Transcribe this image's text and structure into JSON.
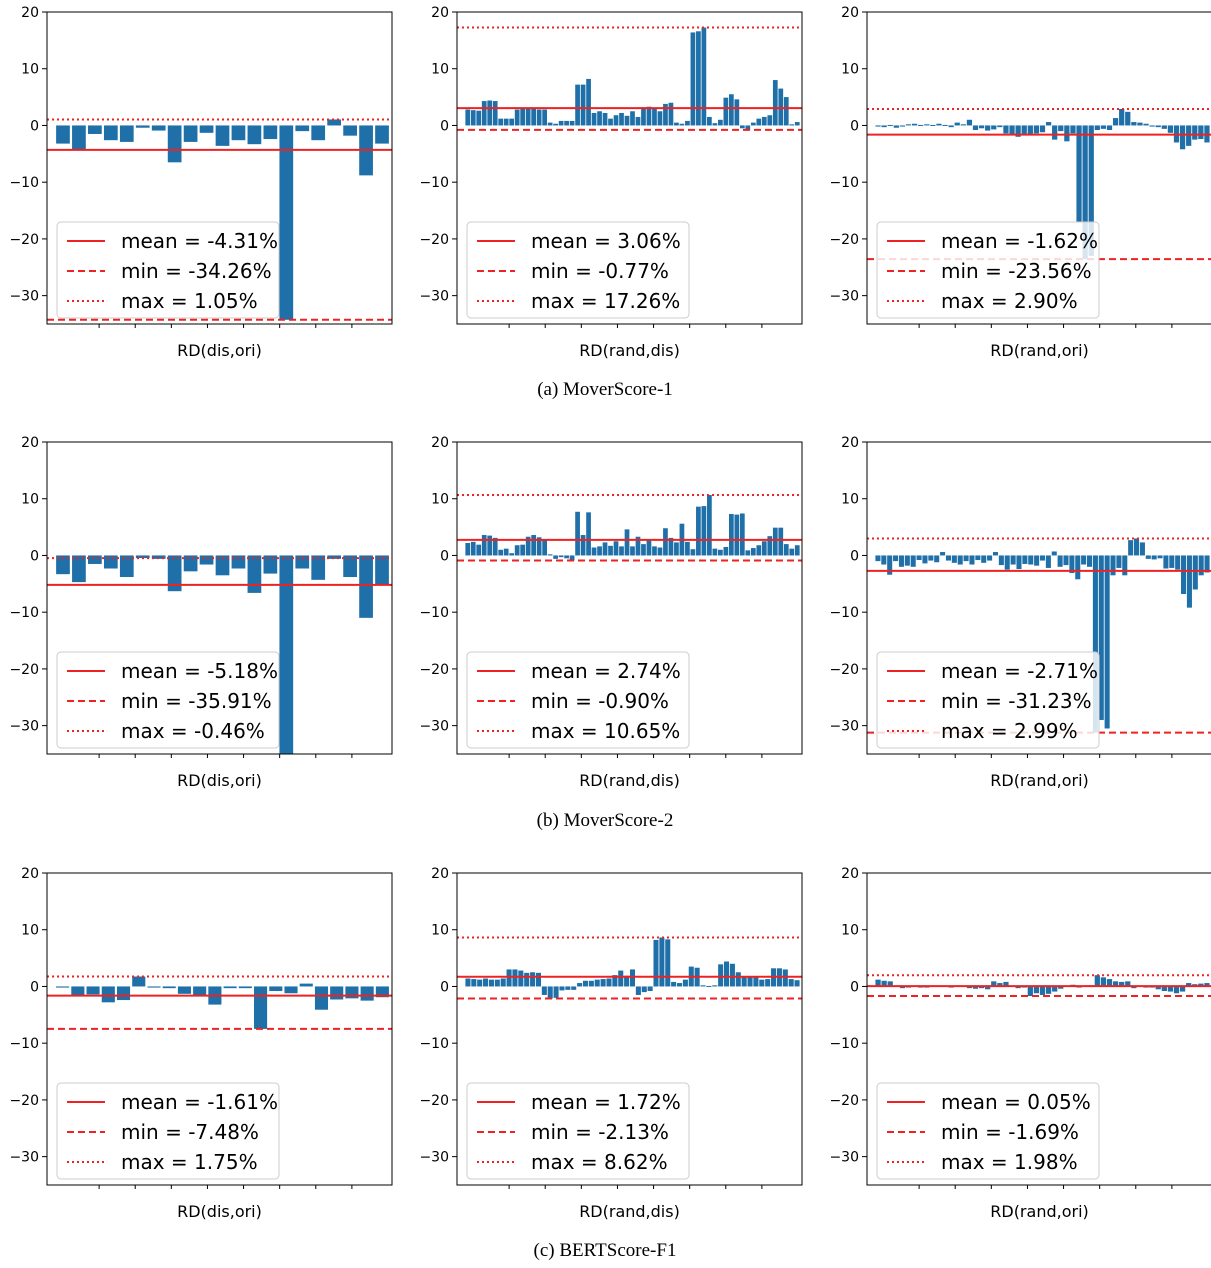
{
  "chart_data": [
    {
      "type": "bar",
      "panel": "MoverScore-1 / RD(dis,ori)",
      "xlabel": "RD(dis,ori)",
      "ylim": [
        -35,
        20
      ],
      "yticks": [
        20,
        10,
        0,
        -10,
        -20,
        -30
      ],
      "values": [
        -3.2,
        -4.3,
        -1.5,
        -2.6,
        -2.9,
        -0.4,
        -0.9,
        -6.5,
        -2.9,
        -1.3,
        -3.6,
        -2.6,
        -3.3,
        -2.4,
        -34.26,
        -1.0,
        -2.6,
        1.05,
        -1.8,
        -8.8,
        -3.2
      ],
      "mean": -4.31,
      "min": -34.26,
      "max": 1.05,
      "legend": {
        "placement": "lower-left",
        "entries": [
          "mean = -4.31%",
          "min = -34.26%",
          "max = 1.05%"
        ]
      }
    },
    {
      "type": "bar",
      "panel": "MoverScore-1 / RD(rand,dis)",
      "xlabel": "RD(rand,dis)",
      "ylim": [
        -35,
        20
      ],
      "yticks": [
        20,
        10,
        0,
        -10,
        -20,
        -30
      ],
      "values": [
        2.8,
        2.7,
        2.6,
        4.3,
        4.4,
        4.3,
        1.2,
        1.2,
        1.2,
        2.8,
        2.9,
        2.9,
        2.9,
        2.8,
        2.8,
        0.5,
        0.3,
        0.8,
        0.8,
        0.8,
        7.2,
        7.2,
        8.2,
        2.2,
        2.5,
        2.2,
        1.2,
        1.8,
        2.2,
        1.7,
        2.5,
        1.5,
        3.2,
        3.3,
        3.1,
        2.5,
        3.8,
        4.0,
        0.5,
        0.3,
        0.8,
        16.4,
        16.6,
        17.26,
        1.5,
        0.4,
        1.0,
        4.9,
        5.5,
        4.6,
        -0.5,
        -0.77,
        0.5,
        1.2,
        1.5,
        1.8,
        8.0,
        6.5,
        5.0,
        0.2,
        0.6
      ],
      "mean": 3.06,
      "min": -0.77,
      "max": 17.26,
      "legend": {
        "placement": "lower-left",
        "entries": [
          "mean = 3.06%",
          "min = -0.77%",
          "max = 17.26%"
        ]
      }
    },
    {
      "type": "bar",
      "panel": "MoverScore-1 / RD(rand,ori)",
      "xlabel": "RD(rand,ori)",
      "ylim": [
        -35,
        20
      ],
      "yticks": [
        20,
        10,
        0,
        -10,
        -20,
        -30
      ],
      "values": [
        -0.2,
        -0.3,
        0.1,
        -0.4,
        -0.2,
        0.2,
        0.3,
        0.1,
        0.2,
        -0.1,
        0.3,
        0.1,
        -0.3,
        0.5,
        0.2,
        1.0,
        -0.8,
        -0.5,
        -0.9,
        -0.7,
        -0.3,
        -1.4,
        -1.5,
        -2.0,
        -1.5,
        -1.5,
        -1.4,
        -1.2,
        0.6,
        -2.5,
        -1.0,
        -2.8,
        -1.4,
        -17.0,
        -23.56,
        -23.0,
        -0.8,
        -0.6,
        -0.8,
        1.3,
        2.9,
        2.4,
        0.6,
        0.5,
        0.3,
        -0.2,
        -0.3,
        -0.6,
        -1.3,
        -3.0,
        -4.2,
        -3.6,
        -2.5,
        -2.4,
        -3.0
      ],
      "mean": -1.62,
      "min": -23.56,
      "max": 2.9,
      "legend": {
        "placement": "lower-left",
        "entries": [
          "mean = -1.62%",
          "min = -23.56%",
          "max = 2.90%"
        ]
      }
    },
    {
      "type": "bar",
      "panel": "MoverScore-2 / RD(dis,ori)",
      "xlabel": "RD(dis,ori)",
      "ylim": [
        -35,
        20
      ],
      "yticks": [
        20,
        10,
        0,
        -10,
        -20,
        -30
      ],
      "values": [
        -3.3,
        -4.7,
        -1.5,
        -2.3,
        -3.8,
        -0.46,
        -0.6,
        -6.3,
        -2.8,
        -1.6,
        -3.5,
        -2.3,
        -6.6,
        -3.2,
        -35.91,
        -2.3,
        -4.3,
        -0.6,
        -3.8,
        -11.0,
        -5.2
      ],
      "mean": -5.18,
      "min": -35.91,
      "max": -0.46,
      "legend": {
        "placement": "lower-left",
        "entries": [
          "mean = -5.18%",
          "min = -35.91%",
          "max = -0.46%"
        ]
      }
    },
    {
      "type": "bar",
      "panel": "MoverScore-2 / RD(rand,dis)",
      "xlabel": "RD(rand,dis)",
      "ylim": [
        -35,
        20
      ],
      "yticks": [
        20,
        10,
        0,
        -10,
        -20,
        -30
      ],
      "values": [
        2.2,
        2.4,
        1.9,
        3.6,
        3.5,
        3.1,
        1.0,
        1.2,
        0.4,
        1.8,
        1.9,
        3.3,
        3.6,
        3.2,
        2.8,
        0.2,
        -0.6,
        -0.3,
        -0.5,
        -0.9,
        7.7,
        3.6,
        7.6,
        1.4,
        1.6,
        2.3,
        1.7,
        2.5,
        1.6,
        4.6,
        1.6,
        3.3,
        2.0,
        2.8,
        1.6,
        1.4,
        4.8,
        3.1,
        2.3,
        5.6,
        2.4,
        1.1,
        8.6,
        8.7,
        10.65,
        1.2,
        1.0,
        1.5,
        7.3,
        7.2,
        7.4,
        0.9,
        1.3,
        1.8,
        2.5,
        3.4,
        4.9,
        4.9,
        2.0,
        1.2,
        1.8
      ],
      "mean": 2.74,
      "min": -0.9,
      "max": 10.65,
      "legend": {
        "placement": "lower-left",
        "entries": [
          "mean = 2.74%",
          "min = -0.90%",
          "max = 10.65%"
        ]
      }
    },
    {
      "type": "bar",
      "panel": "MoverScore-2 / RD(rand,ori)",
      "xlabel": "RD(rand,ori)",
      "ylim": [
        -35,
        20
      ],
      "yticks": [
        20,
        10,
        0,
        -10,
        -20,
        -30
      ],
      "values": [
        -1.0,
        -1.6,
        -3.4,
        -1.0,
        -2.0,
        -1.8,
        -2.0,
        -0.8,
        -1.4,
        -0.9,
        -1.2,
        0.6,
        -0.9,
        -1.3,
        -1.6,
        -1.0,
        -1.6,
        -0.8,
        -1.3,
        -0.9,
        0.6,
        -1.7,
        -2.5,
        -1.6,
        -2.4,
        -1.5,
        -1.6,
        -1.8,
        -0.9,
        -2.2,
        0.7,
        -2.0,
        -1.7,
        -3.1,
        -4.2,
        -1.6,
        -2.0,
        -31.23,
        -29.0,
        -30.5,
        -3.5,
        -2.2,
        -3.5,
        2.7,
        2.99,
        2.3,
        -0.6,
        -0.7,
        -0.5,
        -2.3,
        -2.2,
        -2.5,
        -6.8,
        -9.2,
        -6.0,
        -3.5,
        -3.0
      ],
      "mean": -2.71,
      "min": -31.23,
      "max": 2.99,
      "legend": {
        "placement": "lower-left",
        "entries": [
          "mean = -2.71%",
          "min = -31.23%",
          "max = 2.99%"
        ]
      }
    },
    {
      "type": "bar",
      "panel": "BERTScore-F1 / RD(dis,ori)",
      "xlabel": "RD(dis,ori)",
      "ylim": [
        -35,
        20
      ],
      "yticks": [
        20,
        10,
        0,
        -10,
        -20,
        -30
      ],
      "values": [
        -0.2,
        -1.5,
        -1.4,
        -2.8,
        -2.4,
        1.75,
        -0.2,
        -0.3,
        -1.3,
        -1.5,
        -3.2,
        -0.3,
        -0.3,
        -7.48,
        -0.8,
        -1.2,
        0.5,
        -4.1,
        -2.3,
        -2.1,
        -2.5,
        -1.9
      ],
      "mean": -1.61,
      "min": -7.48,
      "max": 1.75,
      "legend": {
        "placement": "lower-left",
        "entries": [
          "mean = -1.61%",
          "min = -7.48%",
          "max = 1.75%"
        ]
      }
    },
    {
      "type": "bar",
      "panel": "BERTScore-F1 / RD(rand,dis)",
      "xlabel": "RD(rand,dis)",
      "ylim": [
        -35,
        20
      ],
      "yticks": [
        20,
        10,
        0,
        -10,
        -20,
        -30
      ],
      "values": [
        1.4,
        1.3,
        1.2,
        1.4,
        1.2,
        1.2,
        1.4,
        3.0,
        3.0,
        2.8,
        2.4,
        2.5,
        2.4,
        -1.5,
        -2.13,
        -2.0,
        -0.7,
        -0.6,
        -0.6,
        0.6,
        1.0,
        1.0,
        1.2,
        1.3,
        1.4,
        2.0,
        2.8,
        1.9,
        3.0,
        -1.5,
        -1.0,
        -0.8,
        8.2,
        8.62,
        8.3,
        0.8,
        0.6,
        1.2,
        3.5,
        3.3,
        0.2,
        0.1,
        0.2,
        3.9,
        4.4,
        4.0,
        2.5,
        1.8,
        1.6,
        1.6,
        1.2,
        1.3,
        3.2,
        3.2,
        3.0,
        1.3,
        1.1
      ],
      "mean": 1.72,
      "min": -2.13,
      "max": 8.62,
      "legend": {
        "placement": "lower-left",
        "entries": [
          "mean = 1.72%",
          "min = -2.13%",
          "max = 8.62%"
        ]
      }
    },
    {
      "type": "bar",
      "panel": "BERTScore-F1 / RD(rand,ori)",
      "xlabel": "RD(rand,ori)",
      "ylim": [
        -35,
        20
      ],
      "yticks": [
        20,
        10,
        0,
        -10,
        -20,
        -30
      ],
      "values": [
        1.2,
        1.0,
        0.9,
        -0.1,
        -0.3,
        -0.2,
        -0.1,
        -0.2,
        -0.2,
        0.1,
        0.0,
        -0.1,
        -0.2,
        0.0,
        -0.1,
        -0.3,
        -0.4,
        -0.3,
        -0.5,
        0.9,
        0.6,
        0.8,
        0.1,
        -0.3,
        -0.2,
        -1.69,
        -1.2,
        -1.5,
        -1.3,
        -0.9,
        -0.4,
        0.1,
        0.3,
        -0.2,
        -0.1,
        0.2,
        1.98,
        1.6,
        1.3,
        0.9,
        0.8,
        0.9,
        -0.3,
        0.1,
        -0.2,
        -0.2,
        -0.5,
        -0.8,
        -0.9,
        -1.2,
        -0.9,
        0.6,
        0.4,
        0.5,
        0.6
      ],
      "mean": 0.05,
      "min": -1.69,
      "max": 1.98,
      "legend": {
        "placement": "lower-left",
        "entries": [
          "mean = 0.05%",
          "min = -1.69%",
          "max = 1.98%"
        ]
      }
    }
  ],
  "captions": [
    "(a)  MoverScore-1",
    "(b)  MoverScore-2",
    "(c)  BERTScore-F1"
  ],
  "colors": {
    "bar": "#1f6fa8",
    "ref_line": "#ee2222",
    "axis": "#000000"
  }
}
